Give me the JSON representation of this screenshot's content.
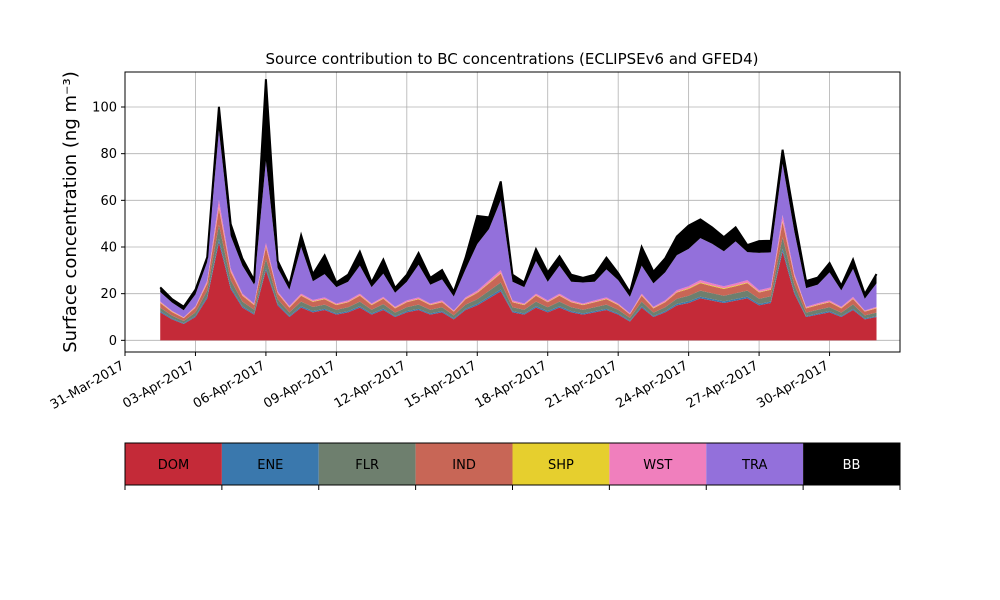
{
  "chart_data": {
    "type": "area",
    "stacked": true,
    "title": "Source contribution to BC concentrations (ECLIPSEv6 and GFED4)",
    "ylabel": "Surface concentration (ng m⁻³)",
    "xlabel": "",
    "ylim": [
      -5,
      115
    ],
    "xlim": [
      "2017-03-31",
      "2017-05-03"
    ],
    "yticks": [
      0,
      20,
      40,
      60,
      80,
      100
    ],
    "xtick_labels": [
      "31-Mar-2017",
      "03-Apr-2017",
      "06-Apr-2017",
      "09-Apr-2017",
      "12-Apr-2017",
      "15-Apr-2017",
      "18-Apr-2017",
      "21-Apr-2017",
      "24-Apr-2017",
      "27-Apr-2017",
      "30-Apr-2017"
    ],
    "grid": true,
    "legend_position": "below",
    "x_dates": [
      "2017-04-01",
      "2017-04-02",
      "2017-04-02",
      "2017-04-03",
      "2017-04-03",
      "2017-04-04",
      "2017-04-04",
      "2017-04-05",
      "2017-04-05",
      "2017-04-06",
      "2017-04-06",
      "2017-04-07",
      "2017-04-07",
      "2017-04-08",
      "2017-04-08",
      "2017-04-09",
      "2017-04-09",
      "2017-04-10",
      "2017-04-10",
      "2017-04-11",
      "2017-04-11",
      "2017-04-12",
      "2017-04-12",
      "2017-04-13",
      "2017-04-13",
      "2017-04-14",
      "2017-04-14",
      "2017-04-15",
      "2017-04-15",
      "2017-04-16",
      "2017-04-16",
      "2017-04-17",
      "2017-04-17",
      "2017-04-18",
      "2017-04-18",
      "2017-04-19",
      "2017-04-19",
      "2017-04-20",
      "2017-04-20",
      "2017-04-21",
      "2017-04-21",
      "2017-04-22",
      "2017-04-22",
      "2017-04-23",
      "2017-04-23",
      "2017-04-24",
      "2017-04-24",
      "2017-04-25",
      "2017-04-25",
      "2017-04-26",
      "2017-04-26",
      "2017-04-27",
      "2017-04-27",
      "2017-04-28",
      "2017-04-28",
      "2017-04-29",
      "2017-04-29",
      "2017-04-30",
      "2017-04-30",
      "2017-05-01",
      "2017-05-01",
      "2017-05-02"
    ],
    "x_hours": [
      12,
      0,
      12,
      0,
      12,
      0,
      12,
      0,
      12,
      0,
      12,
      0,
      12,
      0,
      12,
      0,
      12,
      0,
      12,
      0,
      12,
      0,
      12,
      0,
      12,
      0,
      12,
      0,
      12,
      0,
      12,
      0,
      12,
      0,
      12,
      0,
      12,
      0,
      12,
      0,
      12,
      0,
      12,
      0,
      12,
      0,
      12,
      0,
      12,
      0,
      12,
      0,
      12,
      0,
      12,
      0,
      12,
      0,
      12,
      0,
      12,
      0
    ],
    "series": [
      {
        "name": "DOM",
        "color": "#c42a38",
        "values": [
          12,
          9,
          7,
          10,
          18,
          42,
          22,
          14,
          11,
          30,
          15,
          10,
          14,
          12,
          13,
          11,
          12,
          14,
          11,
          13,
          10,
          12,
          13,
          11,
          12,
          9,
          13,
          15,
          18,
          21,
          12,
          11,
          14,
          12,
          14,
          12,
          11,
          12,
          13,
          11,
          8,
          14,
          10,
          12,
          15,
          16,
          18,
          17,
          16,
          17,
          18,
          15,
          16,
          38,
          20,
          10,
          11,
          12,
          10,
          13,
          9,
          10
        ]
      },
      {
        "name": "ENE",
        "color": "#3a78ad",
        "values": [
          0.5,
          0.4,
          0.3,
          0.5,
          0.8,
          1.5,
          0.8,
          0.6,
          0.5,
          1.0,
          0.6,
          0.5,
          0.6,
          0.5,
          0.5,
          0.5,
          0.5,
          0.6,
          0.5,
          0.6,
          0.4,
          0.5,
          0.5,
          0.5,
          0.5,
          0.4,
          0.5,
          0.6,
          0.7,
          0.8,
          0.5,
          0.5,
          0.6,
          0.5,
          0.6,
          0.5,
          0.5,
          0.5,
          0.5,
          0.5,
          0.4,
          0.6,
          0.4,
          0.5,
          0.6,
          0.7,
          0.7,
          0.7,
          0.7,
          0.7,
          0.7,
          0.6,
          0.6,
          1.2,
          0.8,
          0.4,
          0.5,
          0.5,
          0.4,
          0.5,
          0.4,
          0.4
        ]
      },
      {
        "name": "FLR",
        "color": "#6e7f6e",
        "values": [
          1.5,
          1.2,
          1.0,
          1.5,
          2.5,
          6,
          3,
          2,
          1.6,
          4,
          2,
          1.5,
          2,
          1.8,
          1.8,
          1.6,
          1.7,
          2,
          1.6,
          1.9,
          1.5,
          1.7,
          1.8,
          1.6,
          1.7,
          1.3,
          1.8,
          2,
          2.5,
          3,
          1.7,
          1.6,
          2,
          1.7,
          2,
          1.7,
          1.6,
          1.7,
          1.8,
          1.6,
          1.2,
          2,
          1.5,
          1.7,
          2.2,
          2.4,
          2.6,
          2.5,
          2.4,
          2.5,
          2.6,
          2.2,
          2.3,
          5,
          3,
          1.5,
          1.6,
          1.7,
          1.5,
          1.9,
          1.3,
          1.5
        ]
      },
      {
        "name": "IND",
        "color": "#c86656",
        "values": [
          2,
          1.5,
          1.2,
          2,
          3,
          7,
          3.5,
          2.5,
          2,
          5,
          2.5,
          2,
          2.5,
          2.2,
          2.3,
          2,
          2.1,
          2.5,
          2,
          2.3,
          1.8,
          2.1,
          2.3,
          2,
          2.1,
          1.6,
          2.3,
          2.7,
          3.2,
          3.8,
          2.1,
          2,
          2.5,
          2.1,
          2.5,
          2.1,
          2,
          2.1,
          2.3,
          2,
          1.5,
          2.5,
          1.8,
          2.1,
          2.7,
          2.9,
          3.2,
          3,
          2.9,
          3,
          3.2,
          2.7,
          2.8,
          6.5,
          3.5,
          1.8,
          2,
          2.1,
          1.8,
          2.3,
          1.6,
          1.8
        ]
      },
      {
        "name": "SHP",
        "color": "#e6cf2e",
        "values": [
          0.2,
          0.2,
          0.1,
          0.2,
          0.3,
          0.6,
          0.3,
          0.2,
          0.2,
          0.4,
          0.2,
          0.2,
          0.2,
          0.2,
          0.2,
          0.2,
          0.2,
          0.2,
          0.2,
          0.2,
          0.2,
          0.2,
          0.2,
          0.2,
          0.2,
          0.1,
          0.2,
          0.2,
          0.3,
          0.3,
          0.2,
          0.2,
          0.2,
          0.2,
          0.2,
          0.2,
          0.2,
          0.2,
          0.2,
          0.2,
          0.1,
          0.2,
          0.2,
          0.2,
          0.2,
          0.3,
          0.3,
          0.3,
          0.3,
          0.3,
          0.3,
          0.2,
          0.2,
          0.5,
          0.3,
          0.2,
          0.2,
          0.2,
          0.2,
          0.2,
          0.1,
          0.2
        ]
      },
      {
        "name": "WST",
        "color": "#f07fbd",
        "values": [
          0.5,
          0.4,
          0.3,
          0.5,
          1,
          3,
          1.2,
          0.7,
          0.5,
          1.5,
          0.7,
          0.5,
          0.7,
          0.6,
          0.6,
          0.5,
          0.6,
          0.7,
          0.5,
          0.6,
          0.5,
          0.6,
          0.6,
          0.5,
          0.6,
          0.4,
          0.6,
          0.8,
          1,
          1.2,
          0.6,
          0.5,
          0.7,
          0.6,
          0.7,
          0.6,
          0.5,
          0.6,
          0.6,
          0.5,
          0.4,
          0.7,
          0.5,
          0.6,
          0.8,
          0.9,
          1,
          0.9,
          0.9,
          0.9,
          1,
          0.8,
          0.8,
          2.5,
          1.1,
          0.5,
          0.6,
          0.6,
          0.5,
          0.7,
          0.4,
          0.5
        ]
      },
      {
        "name": "TRA",
        "color": "#9370db",
        "values": [
          4,
          3.5,
          3,
          5,
          8,
          30,
          14,
          12,
          8,
          35,
          10,
          7,
          20,
          8,
          10,
          7,
          8,
          12,
          7,
          10,
          6,
          8,
          14,
          8,
          9,
          6,
          12,
          20,
          22,
          30,
          8,
          7,
          14,
          8,
          12,
          8,
          9,
          8,
          12,
          10,
          7,
          12,
          10,
          12,
          15,
          16,
          18,
          17,
          15,
          18,
          12,
          16,
          15,
          22,
          18,
          8,
          8,
          12,
          7,
          12,
          5,
          10
        ]
      },
      {
        "name": "BB",
        "color": "#000000",
        "values": [
          2,
          1.5,
          1.5,
          2,
          2,
          10,
          5,
          3,
          2,
          35,
          3,
          2,
          5,
          3,
          8,
          2,
          3,
          6,
          2,
          6,
          2,
          3,
          5,
          3,
          4,
          2,
          5,
          12,
          5,
          8,
          3,
          2,
          5,
          4,
          4,
          3,
          2,
          3,
          5,
          3,
          2,
          8,
          5,
          6,
          8,
          10,
          8,
          7,
          6,
          6,
          3,
          5,
          5,
          6,
          6,
          3,
          3,
          4,
          2,
          4,
          2,
          4
        ]
      }
    ]
  }
}
